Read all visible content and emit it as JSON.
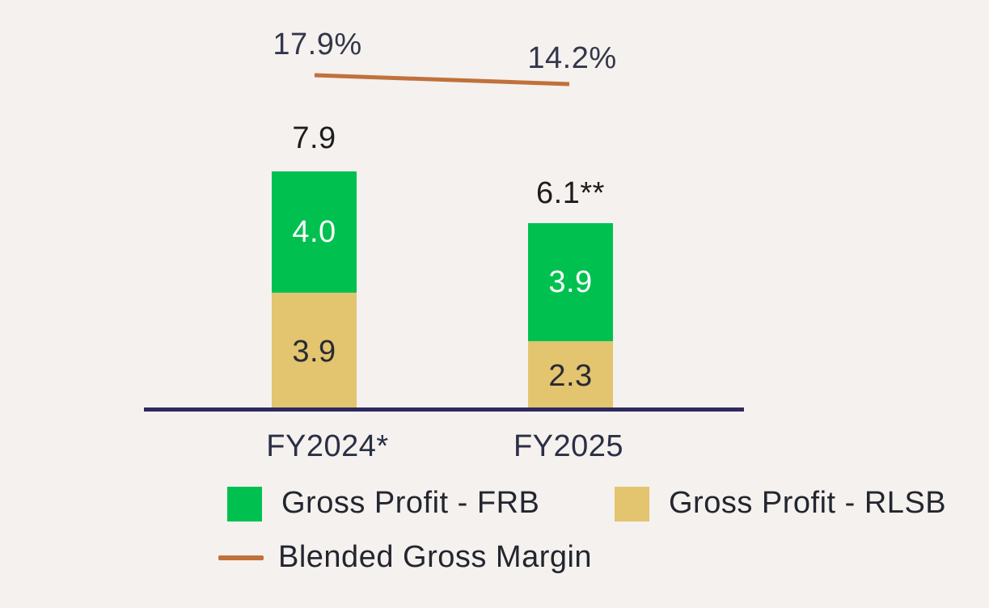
{
  "palette": {
    "background": "#F5F1EE",
    "frb_green": "#00C150",
    "rlsb_tan": "#E3C46F",
    "margin_line_orange": "#C0713C",
    "axis_navy": "#2E2960",
    "text_dark": "#2A2F45"
  },
  "chart_data": {
    "type": "bar",
    "subtype": "stacked_bar_with_line",
    "title": "",
    "categories": [
      "FY2024*",
      "FY2025"
    ],
    "series": [
      {
        "name": "Gross Profit - FRB",
        "color": "#00C150",
        "values": [
          4.0,
          3.9
        ],
        "labels": [
          "4.0",
          "3.9"
        ]
      },
      {
        "name": "Gross Profit - RLSB",
        "color": "#E3C46F",
        "values": [
          3.9,
          2.3
        ],
        "labels": [
          "3.9",
          "2.3"
        ]
      }
    ],
    "totals": [
      "7.9",
      "6.1**"
    ],
    "line_series": {
      "name": "Blended Gross Margin",
      "color": "#C0713C",
      "values": [
        17.9,
        14.2
      ],
      "labels": [
        "17.9%",
        "14.2%"
      ]
    },
    "legend": [
      {
        "label": "Gross Profit - FRB",
        "swatch": "square",
        "color": "#00C150"
      },
      {
        "label": "Gross Profit - RLSB",
        "swatch": "square",
        "color": "#E3C46F"
      },
      {
        "label": "Blended Gross Margin",
        "swatch": "line",
        "color": "#C0713C"
      }
    ],
    "axis_color": "#2E2960",
    "grid": false,
    "legend_position": "bottom",
    "ylim": [
      0,
      7.9
    ]
  }
}
